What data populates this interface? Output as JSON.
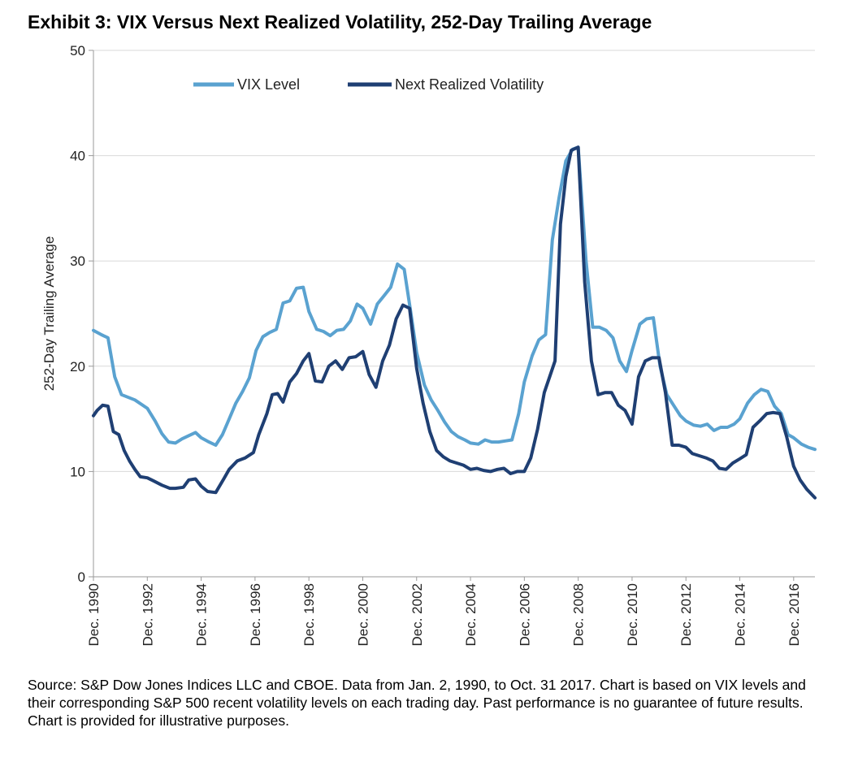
{
  "chart_data": {
    "type": "line",
    "title": "Exhibit 3: VIX Versus Next Realized Volatility, 252-Day Trailing Average",
    "xlabel": "",
    "ylabel": "252-Day Trailing Average",
    "xlim": [
      1990.96,
      2017.75
    ],
    "ylim": [
      0,
      50
    ],
    "yticks": [
      0,
      10,
      20,
      30,
      40,
      50
    ],
    "xtick_values": [
      1990.96,
      1992.96,
      1994.96,
      1996.96,
      1998.96,
      2000.96,
      2002.96,
      2004.96,
      2006.96,
      2008.96,
      2010.96,
      2012.96,
      2014.96,
      2016.96
    ],
    "xtick_labels": [
      "Dec. 1990",
      "Dec. 1992",
      "Dec. 1994",
      "Dec. 1996",
      "Dec. 1998",
      "Dec. 2000",
      "Dec. 2002",
      "Dec. 2004",
      "Dec. 2006",
      "Dec. 2008",
      "Dec. 2010",
      "Dec. 2012",
      "Dec. 2014",
      "Dec. 2016"
    ],
    "grid": true,
    "legend_position": "top-left",
    "series": [
      {
        "name": "VIX Level",
        "color": "#5aa2d0",
        "x": [
          1990.96,
          1991.25,
          1991.5,
          1991.75,
          1992.0,
          1992.5,
          1992.96,
          1993.25,
          1993.5,
          1993.75,
          1994.0,
          1994.25,
          1994.5,
          1994.75,
          1994.96,
          1995.25,
          1995.5,
          1995.75,
          1996.0,
          1996.25,
          1996.5,
          1996.75,
          1997.0,
          1997.25,
          1997.5,
          1997.75,
          1998.0,
          1998.25,
          1998.5,
          1998.75,
          1998.96,
          1999.25,
          1999.5,
          1999.75,
          2000.0,
          2000.25,
          2000.5,
          2000.75,
          2000.96,
          2001.25,
          2001.5,
          2001.75,
          2002.0,
          2002.25,
          2002.5,
          2002.75,
          2002.96,
          2003.25,
          2003.5,
          2003.75,
          2004.0,
          2004.25,
          2004.5,
          2004.75,
          2004.96,
          2005.25,
          2005.5,
          2005.75,
          2006.0,
          2006.25,
          2006.5,
          2006.75,
          2006.96,
          2007.25,
          2007.5,
          2007.75,
          2008.0,
          2008.25,
          2008.5,
          2008.75,
          2008.96,
          2009.25,
          2009.5,
          2009.75,
          2010.0,
          2010.25,
          2010.5,
          2010.75,
          2010.96,
          2011.25,
          2011.5,
          2011.75,
          2012.0,
          2012.25,
          2012.5,
          2012.75,
          2012.96,
          2013.25,
          2013.5,
          2013.75,
          2014.0,
          2014.25,
          2014.5,
          2014.75,
          2014.96,
          2015.25,
          2015.5,
          2015.75,
          2016.0,
          2016.25,
          2016.5,
          2016.75,
          2016.96,
          2017.25,
          2017.5,
          2017.75
        ],
        "values": [
          23.4,
          23.0,
          22.7,
          19.0,
          17.3,
          16.8,
          16.0,
          14.8,
          13.6,
          12.8,
          12.7,
          13.1,
          13.4,
          13.7,
          13.2,
          12.8,
          12.5,
          13.5,
          15.0,
          16.5,
          17.6,
          18.9,
          21.5,
          22.8,
          23.2,
          23.5,
          26.0,
          26.2,
          27.4,
          27.5,
          25.2,
          23.5,
          23.3,
          22.9,
          23.4,
          23.5,
          24.3,
          25.9,
          25.5,
          24.0,
          25.9,
          26.7,
          27.5,
          29.7,
          29.2,
          25.0,
          21.3,
          18.2,
          16.8,
          15.8,
          14.7,
          13.8,
          13.3,
          13.0,
          12.7,
          12.6,
          13.0,
          12.8,
          12.8,
          12.9,
          13.0,
          15.5,
          18.5,
          21.0,
          22.5,
          23.0,
          32.0,
          36.0,
          39.5,
          40.6,
          40.8,
          30.0,
          23.7,
          23.7,
          23.4,
          22.7,
          20.5,
          19.5,
          21.5,
          24.0,
          24.5,
          24.6,
          20.0,
          17.3,
          16.3,
          15.3,
          14.8,
          14.4,
          14.3,
          14.5,
          13.9,
          14.2,
          14.2,
          14.5,
          15.0,
          16.5,
          17.3,
          17.8,
          17.6,
          16.2,
          15.5,
          13.5,
          13.2,
          12.6,
          12.3,
          12.1
        ]
      },
      {
        "name": "Next Realized Volatility",
        "color": "#1f3f73",
        "x": [
          1990.96,
          1991.1,
          1991.3,
          1991.5,
          1991.7,
          1991.9,
          1992.1,
          1992.3,
          1992.5,
          1992.7,
          1992.96,
          1993.2,
          1993.5,
          1993.8,
          1994.0,
          1994.3,
          1994.5,
          1994.75,
          1994.96,
          1995.2,
          1995.5,
          1995.8,
          1996.0,
          1996.3,
          1996.6,
          1996.9,
          1997.1,
          1997.4,
          1997.6,
          1997.8,
          1998.0,
          1998.25,
          1998.5,
          1998.75,
          1998.96,
          1999.2,
          1999.45,
          1999.7,
          1999.95,
          2000.2,
          2000.45,
          2000.7,
          2000.96,
          2001.2,
          2001.45,
          2001.7,
          2001.95,
          2002.2,
          2002.45,
          2002.7,
          2002.96,
          2003.2,
          2003.45,
          2003.7,
          2003.95,
          2004.2,
          2004.45,
          2004.7,
          2004.96,
          2005.2,
          2005.45,
          2005.7,
          2005.96,
          2006.2,
          2006.45,
          2006.7,
          2006.96,
          2007.2,
          2007.45,
          2007.7,
          2007.9,
          2008.1,
          2008.3,
          2008.5,
          2008.7,
          2008.96,
          2009.2,
          2009.45,
          2009.7,
          2009.96,
          2010.2,
          2010.45,
          2010.7,
          2010.96,
          2011.2,
          2011.45,
          2011.7,
          2011.96,
          2012.2,
          2012.45,
          2012.7,
          2012.96,
          2013.2,
          2013.45,
          2013.7,
          2013.96,
          2014.2,
          2014.45,
          2014.7,
          2014.96,
          2015.2,
          2015.45,
          2015.7,
          2015.96,
          2016.2,
          2016.45,
          2016.7,
          2016.96,
          2017.2,
          2017.45,
          2017.75
        ],
        "values": [
          15.3,
          15.8,
          16.3,
          16.2,
          13.8,
          13.5,
          12.0,
          11.0,
          10.2,
          9.5,
          9.4,
          9.1,
          8.7,
          8.4,
          8.4,
          8.5,
          9.2,
          9.3,
          8.6,
          8.1,
          8.0,
          9.3,
          10.2,
          11.0,
          11.3,
          11.8,
          13.5,
          15.5,
          17.3,
          17.4,
          16.6,
          18.5,
          19.3,
          20.5,
          21.2,
          18.6,
          18.5,
          20.0,
          20.5,
          19.7,
          20.8,
          20.9,
          21.4,
          19.2,
          18.0,
          20.5,
          22.0,
          24.5,
          25.8,
          25.5,
          19.8,
          16.5,
          13.8,
          12.0,
          11.4,
          11.0,
          10.8,
          10.6,
          10.2,
          10.3,
          10.1,
          10.0,
          10.2,
          10.3,
          9.8,
          10.0,
          10.0,
          11.3,
          14.0,
          17.5,
          19.0,
          20.5,
          33.5,
          38.0,
          40.5,
          40.8,
          28.0,
          20.5,
          17.3,
          17.5,
          17.5,
          16.3,
          15.8,
          14.5,
          19.0,
          20.5,
          20.8,
          20.8,
          17.5,
          12.5,
          12.5,
          12.3,
          11.7,
          11.5,
          11.3,
          11.0,
          10.3,
          10.2,
          10.8,
          11.2,
          11.6,
          14.2,
          14.8,
          15.5,
          15.6,
          15.5,
          13.3,
          10.5,
          9.2,
          8.3,
          7.5
        ]
      }
    ]
  },
  "footer": {
    "source_text": "Source: S&P Dow Jones Indices LLC and CBOE.  Data from Jan. 2, 1990, to Oct. 31 2017.  Chart is based on VIX levels and their corresponding S&P 500 recent volatility levels on each trading day.  Past performance is no guarantee of future results.  Chart is provided for illustrative purposes."
  }
}
